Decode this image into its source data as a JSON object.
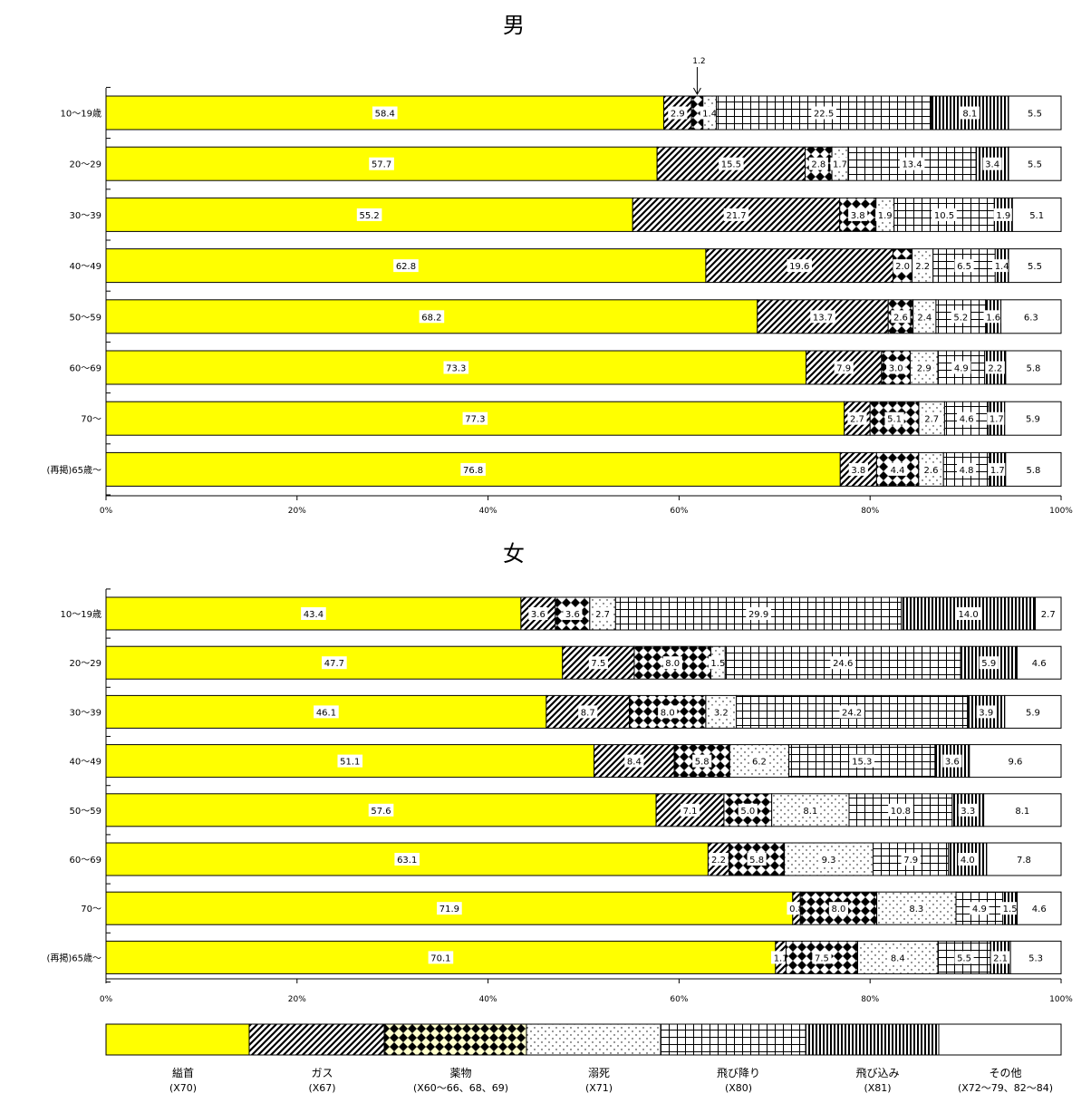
{
  "chart_data": [
    {
      "type": "bar",
      "orientation": "horizontal",
      "stacked": "percent",
      "title": "男",
      "categories": [
        "10～19歳",
        "20～29",
        "30～39",
        "40～49",
        "50～59",
        "60～69",
        "70～",
        "(再掲)65歳～"
      ],
      "xlim": [
        0,
        100
      ],
      "x_ticks": [
        "0%",
        "20%",
        "40%",
        "60%",
        "80%",
        "100%"
      ],
      "grid": false,
      "annotation": {
        "text": "1.2",
        "category_index": 0,
        "series_index": 2
      },
      "series": [
        {
          "key": "kubikubi",
          "values": [
            58.4,
            57.7,
            55.2,
            62.8,
            68.2,
            73.3,
            77.3,
            76.8
          ],
          "labels": [
            "58.4",
            "57.7",
            "55.2",
            "62.8",
            "68.2",
            "73.3",
            "77.3",
            "76.8"
          ]
        },
        {
          "key": "gas",
          "values": [
            2.9,
            15.5,
            21.7,
            19.6,
            13.7,
            7.9,
            2.7,
            3.8
          ],
          "labels": [
            "2.9",
            "15.5",
            "21.7",
            "19.6",
            "13.7",
            "7.9",
            "2.7",
            "3.8"
          ]
        },
        {
          "key": "drug",
          "values": [
            1.2,
            2.8,
            3.8,
            2.0,
            2.6,
            3.0,
            5.1,
            4.4
          ],
          "labels": [
            "",
            "2.8",
            "3.8",
            "2.0",
            "2.6",
            "3.0",
            "5.1",
            "4.4"
          ]
        },
        {
          "key": "drown",
          "values": [
            1.4,
            1.7,
            1.9,
            2.2,
            2.4,
            2.9,
            2.7,
            2.6
          ],
          "labels": [
            "1.4",
            "1.7",
            "1.9",
            "2.2",
            "2.4",
            "2.9",
            "2.7",
            "2.6"
          ]
        },
        {
          "key": "jump_off",
          "values": [
            22.5,
            13.4,
            10.5,
            6.5,
            5.2,
            4.9,
            4.6,
            4.8
          ],
          "labels": [
            "22.5",
            "13.4",
            "10.5",
            "6.5",
            "5.2",
            "4.9",
            "4.6",
            "4.8"
          ]
        },
        {
          "key": "jump_in",
          "values": [
            8.1,
            3.4,
            1.9,
            1.4,
            1.6,
            2.2,
            1.7,
            1.7
          ],
          "labels": [
            "8.1",
            "3.4",
            "1.9",
            "1.4",
            "1.6",
            "2.2",
            "1.7",
            "1.7"
          ]
        },
        {
          "key": "other",
          "values": [
            5.5,
            5.5,
            5.1,
            5.5,
            6.3,
            5.8,
            5.9,
            5.8
          ],
          "labels": [
            "5.5",
            "5.5",
            "5.1",
            "5.5",
            "6.3",
            "5.8",
            "5.9",
            "5.8"
          ]
        }
      ]
    },
    {
      "type": "bar",
      "orientation": "horizontal",
      "stacked": "percent",
      "title": "女",
      "categories": [
        "10～19歳",
        "20～29",
        "30～39",
        "40～49",
        "50～59",
        "60～69",
        "70～",
        "(再掲)65歳～"
      ],
      "xlim": [
        0,
        100
      ],
      "x_ticks": [
        "0%",
        "20%",
        "40%",
        "60%",
        "80%",
        "100%"
      ],
      "grid": false,
      "series": [
        {
          "key": "kubikubi",
          "values": [
            43.4,
            47.7,
            46.1,
            51.1,
            57.6,
            63.1,
            71.9,
            70.1
          ],
          "labels": [
            "43.4",
            "47.7",
            "46.1",
            "51.1",
            "57.6",
            "63.1",
            "71.9",
            "70.1"
          ]
        },
        {
          "key": "gas",
          "values": [
            3.6,
            7.5,
            8.7,
            8.4,
            7.1,
            2.2,
            0.8,
            1.1
          ],
          "labels": [
            "3.6",
            "7.5",
            "8.7",
            "8.4",
            "7.1",
            "2.2",
            "0.8",
            "1.1"
          ]
        },
        {
          "key": "drug",
          "values": [
            3.6,
            8.0,
            8.0,
            5.8,
            5.0,
            5.8,
            8.0,
            7.5
          ],
          "labels": [
            "3.6",
            "8.0",
            "8.0",
            "5.8",
            "5.0",
            "5.8",
            "8.0",
            "7.5"
          ]
        },
        {
          "key": "drown",
          "values": [
            2.7,
            1.5,
            3.2,
            6.2,
            8.1,
            9.3,
            8.3,
            8.4
          ],
          "labels": [
            "2.7",
            "1.5",
            "3.2",
            "6.2",
            "8.1",
            "9.3",
            "8.3",
            "8.4"
          ]
        },
        {
          "key": "jump_off",
          "values": [
            29.9,
            24.6,
            24.2,
            15.3,
            10.8,
            7.9,
            4.9,
            5.5
          ],
          "labels": [
            "29.9",
            "24.6",
            "24.2",
            "15.3",
            "10.8",
            "7.9",
            "4.9",
            "5.5"
          ]
        },
        {
          "key": "jump_in",
          "values": [
            14.0,
            5.9,
            3.9,
            3.6,
            3.3,
            4.0,
            1.5,
            2.1
          ],
          "labels": [
            "14.0",
            "5.9",
            "3.9",
            "3.6",
            "3.3",
            "4.0",
            "1.5",
            "2.1"
          ]
        },
        {
          "key": "other",
          "values": [
            2.7,
            4.6,
            5.9,
            9.6,
            8.1,
            7.8,
            4.6,
            5.3
          ],
          "labels": [
            "2.7",
            "4.6",
            "5.9",
            "9.6",
            "8.1",
            "7.8",
            "4.6",
            "5.3"
          ]
        }
      ]
    }
  ],
  "legend": {
    "placement": "bottom",
    "items": [
      {
        "key": "kubikubi",
        "name": "縊首",
        "code": "(X70)",
        "fill": "#ffff00"
      },
      {
        "key": "gas",
        "name": "ガス",
        "code": "(X67)",
        "fill": "hatch"
      },
      {
        "key": "drug",
        "name": "薬物",
        "code": "(X60～66、68、69)",
        "fill": "diamonds",
        "legend_background": "#ffffcc"
      },
      {
        "key": "drown",
        "name": "溺死",
        "code": "(X71)",
        "fill": "dots"
      },
      {
        "key": "jump_off",
        "name": "飛び降り",
        "code": "(X80)",
        "fill": "grid"
      },
      {
        "key": "jump_in",
        "name": "飛び込み",
        "code": "(X81)",
        "fill": "vertical-lines"
      },
      {
        "key": "other",
        "name": "その他",
        "code": "(X72～79、82～84)",
        "fill": "#ffffff"
      }
    ]
  },
  "colors": {
    "kubikubi": "#ffff00",
    "stroke": "#000000",
    "background": "#ffffff",
    "drug_legend_bg": "#ffffcc"
  }
}
